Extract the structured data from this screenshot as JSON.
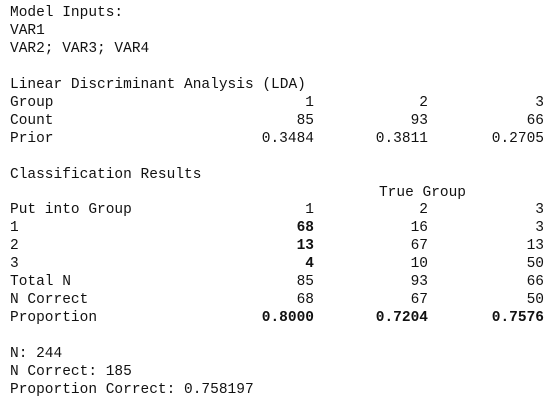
{
  "inputs": {
    "title": "Model Inputs:",
    "lines": [
      "VAR1",
      "VAR2; VAR3; VAR4"
    ]
  },
  "lda": {
    "title": "Linear Discriminant Analysis (LDA)",
    "rows": [
      [
        "Group",
        "1",
        "2",
        "3"
      ],
      [
        "Count",
        "85",
        "93",
        "66"
      ],
      [
        "Prior",
        "0.3484",
        "0.3811",
        "0.2705"
      ]
    ]
  },
  "classification": {
    "title": "Classification Results",
    "header": "True Group",
    "rows": [
      [
        "Put into Group",
        "1",
        "2",
        "3"
      ],
      [
        "1",
        "68",
        "16",
        "3"
      ],
      [
        "2",
        "13",
        "67",
        "13"
      ],
      [
        "3",
        "4",
        "10",
        "50"
      ],
      [
        "Total N",
        "85",
        "93",
        "66"
      ],
      [
        "N Correct",
        "68",
        "67",
        "50"
      ],
      [
        "Proportion",
        "0.8000",
        "0.7204",
        "0.7576"
      ]
    ]
  },
  "summary": [
    "N: 244",
    "N Correct: 185",
    "Proportion Correct: 0.758197"
  ]
}
